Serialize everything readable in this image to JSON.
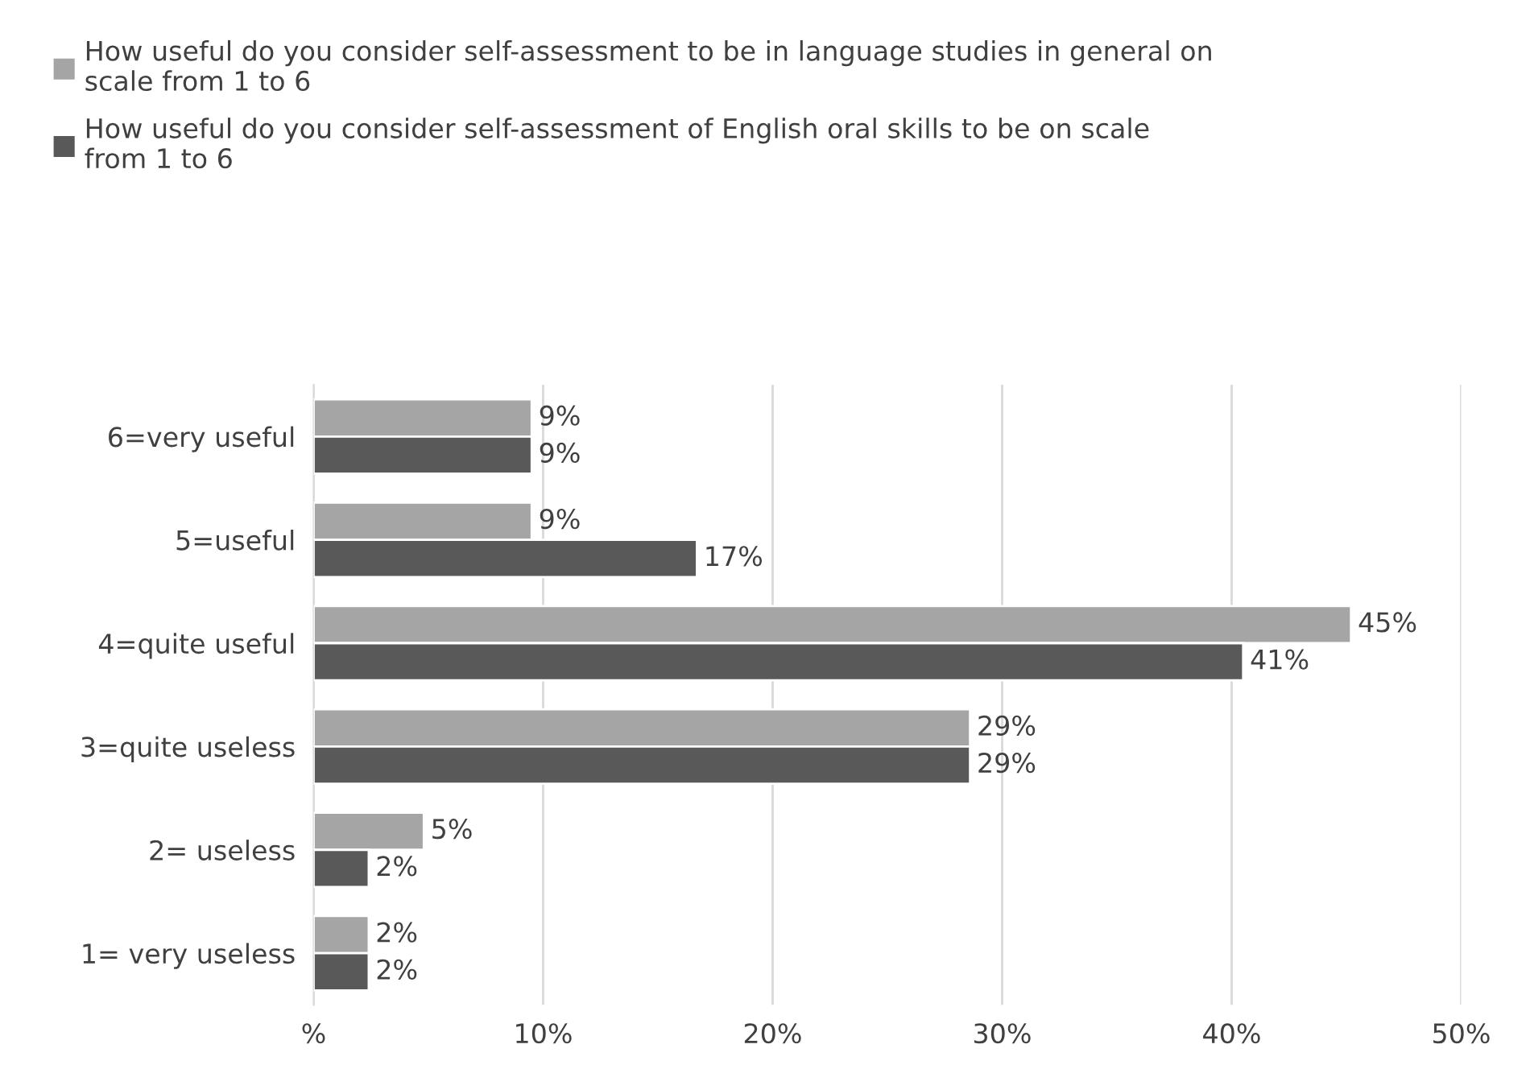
{
  "chart_data": {
    "type": "bar",
    "orientation": "horizontal",
    "categories": [
      "6=very useful",
      "5=useful",
      "4=quite useful",
      "3=quite useless",
      "2= useless",
      "1= very useless"
    ],
    "series": [
      {
        "name": "How useful do you consider self-assessment to be in language studies in general on scale from 1 to 6",
        "color": "#a5a5a5",
        "values": [
          9.5,
          9.5,
          45.2,
          28.6,
          4.8,
          2.4
        ],
        "value_labels": [
          "9%",
          "9%",
          "45%",
          "29%",
          "5%",
          "2%"
        ]
      },
      {
        "name": "How useful do you consider self-assessment of English oral skills to be on scale from 1 to 6",
        "color": "#595959",
        "values": [
          9.5,
          16.7,
          40.5,
          28.6,
          2.4,
          2.4
        ],
        "value_labels": [
          "9%",
          "17%",
          "41%",
          "29%",
          "2%",
          "2%"
        ]
      }
    ],
    "xlim": [
      0,
      50
    ],
    "xticks": [
      {
        "value": 0,
        "label": "%"
      },
      {
        "value": 10,
        "label": "10%"
      },
      {
        "value": 20,
        "label": "20%"
      },
      {
        "value": 30,
        "label": "30%"
      },
      {
        "value": 40,
        "label": "40%"
      },
      {
        "value": 50,
        "label": "50%"
      }
    ],
    "grid": "x",
    "legend": "top"
  }
}
